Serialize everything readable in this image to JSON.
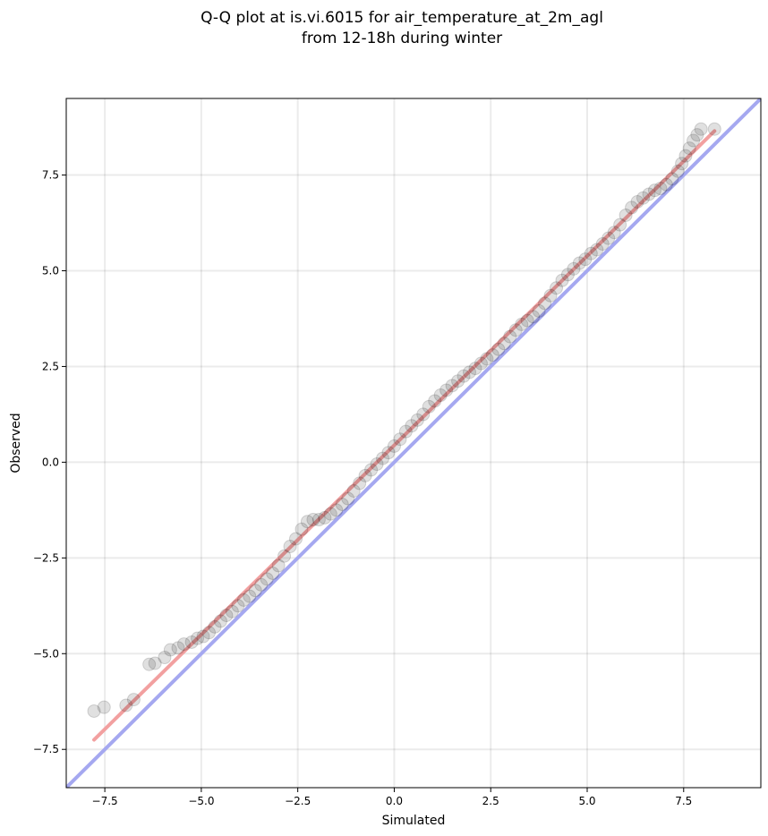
{
  "chart_data": {
    "type": "scatter",
    "title_lines": [
      "Q-Q plot at is.vi.6015 for air_temperature_at_2m_agl",
      "from 12-18h during winter"
    ],
    "xlabel": "Simulated",
    "ylabel": "Observed",
    "xlim": [
      -8.5,
      9.5
    ],
    "ylim": [
      -8.5,
      9.5
    ],
    "xticks": [
      -7.5,
      -5.0,
      -2.5,
      0.0,
      2.5,
      5.0,
      7.5
    ],
    "yticks": [
      -7.5,
      -5.0,
      -2.5,
      0.0,
      2.5,
      5.0,
      7.5
    ],
    "xtick_labels": [
      "−7.5",
      "−5.0",
      "−2.5",
      "0.0",
      "2.5",
      "5.0",
      "7.5"
    ],
    "ytick_labels": [
      "−7.5",
      "−5.0",
      "−2.5",
      "0.0",
      "2.5",
      "5.0",
      "7.5"
    ],
    "grid": true,
    "series": [
      {
        "kind": "quantile-points",
        "color": "#000000",
        "x": [
          -7.78,
          -7.52,
          -6.95,
          -6.75,
          -6.35,
          -6.2,
          -5.95,
          -5.8,
          -5.6,
          -5.45,
          -5.25,
          -5.1,
          -4.95,
          -4.8,
          -4.65,
          -4.5,
          -4.35,
          -4.2,
          -4.05,
          -3.9,
          -3.75,
          -3.6,
          -3.45,
          -3.3,
          -3.15,
          -3.0,
          -2.85,
          -2.7,
          -2.55,
          -2.4,
          -2.25,
          -2.1,
          -1.95,
          -1.8,
          -1.65,
          -1.5,
          -1.35,
          -1.2,
          -1.05,
          -0.9,
          -0.75,
          -0.6,
          -0.45,
          -0.3,
          -0.15,
          0.0,
          0.15,
          0.3,
          0.45,
          0.6,
          0.75,
          0.9,
          1.05,
          1.2,
          1.35,
          1.5,
          1.65,
          1.8,
          1.95,
          2.1,
          2.25,
          2.4,
          2.55,
          2.7,
          2.85,
          3.0,
          3.15,
          3.3,
          3.45,
          3.6,
          3.75,
          3.9,
          4.05,
          4.2,
          4.35,
          4.5,
          4.65,
          4.8,
          4.95,
          5.1,
          5.25,
          5.4,
          5.55,
          5.7,
          5.85,
          6.0,
          6.15,
          6.3,
          6.45,
          6.6,
          6.75,
          6.9,
          7.05,
          7.2,
          7.35,
          7.45,
          7.55,
          7.65,
          7.75,
          7.85,
          7.95,
          8.3
        ],
        "y": [
          -6.5,
          -6.4,
          -6.35,
          -6.2,
          -5.28,
          -5.25,
          -5.1,
          -4.9,
          -4.85,
          -4.75,
          -4.7,
          -4.6,
          -4.55,
          -4.45,
          -4.3,
          -4.15,
          -4.0,
          -3.9,
          -3.75,
          -3.6,
          -3.5,
          -3.35,
          -3.2,
          -3.05,
          -2.9,
          -2.7,
          -2.45,
          -2.2,
          -2.0,
          -1.75,
          -1.55,
          -1.5,
          -1.5,
          -1.45,
          -1.35,
          -1.25,
          -1.1,
          -0.95,
          -0.75,
          -0.55,
          -0.35,
          -0.2,
          -0.05,
          0.1,
          0.25,
          0.42,
          0.6,
          0.8,
          0.95,
          1.1,
          1.25,
          1.45,
          1.6,
          1.75,
          1.88,
          2.0,
          2.12,
          2.25,
          2.35,
          2.45,
          2.58,
          2.7,
          2.8,
          2.95,
          3.1,
          3.28,
          3.45,
          3.6,
          3.7,
          3.8,
          3.95,
          4.15,
          4.35,
          4.55,
          4.75,
          4.9,
          5.05,
          5.2,
          5.3,
          5.45,
          5.55,
          5.7,
          5.85,
          6.0,
          6.2,
          6.45,
          6.65,
          6.8,
          6.9,
          7.0,
          7.1,
          7.15,
          7.25,
          7.4,
          7.6,
          7.8,
          8.0,
          8.2,
          8.4,
          8.55,
          8.7,
          8.7
        ]
      },
      {
        "kind": "reference-line-y-equals-x",
        "color": "#a5a8f0",
        "x": [
          -8.5,
          9.5
        ],
        "y": [
          -8.5,
          9.5
        ]
      },
      {
        "kind": "fit-line",
        "color": "#f2a0a0",
        "x": [
          -7.78,
          8.3
        ],
        "y": [
          -7.25,
          8.65
        ]
      }
    ]
  }
}
